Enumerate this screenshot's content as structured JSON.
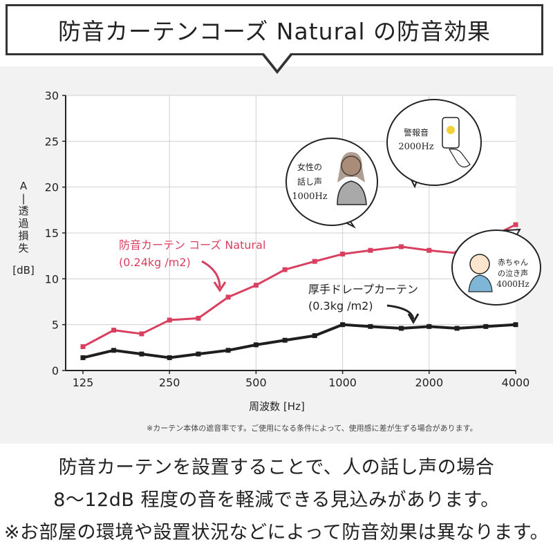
{
  "title": "防音カーテンコーズ Natural の防音効果",
  "chart_data": {
    "type": "line",
    "xlabel": "周波数 [Hz]",
    "ylabel": [
      "A",
      "|",
      "透",
      "過",
      "損",
      "失",
      "[dB]"
    ],
    "x_ticks": [
      "125",
      "250",
      "500",
      "1000",
      "2000",
      "4000"
    ],
    "x_tick_values": [
      125,
      250,
      500,
      1000,
      2000,
      4000
    ],
    "xscale": "log",
    "ylim": [
      0,
      30
    ],
    "y_ticks": [
      0,
      5,
      10,
      15,
      20,
      25,
      30
    ],
    "grid": true,
    "x": [
      125,
      160,
      200,
      250,
      315,
      400,
      500,
      630,
      800,
      1000,
      1250,
      1600,
      2000,
      2500,
      3150,
      4000
    ],
    "series": [
      {
        "name": "防音カーテン コーズ Natural",
        "sublabel": "(0.24kg /m2)",
        "color": "#d94060",
        "values": [
          2.6,
          4.4,
          4.0,
          5.5,
          5.7,
          8.0,
          9.3,
          11.0,
          11.9,
          12.7,
          13.1,
          13.5,
          13.1,
          12.8,
          14.3,
          15.9
        ]
      },
      {
        "name": "厚手ドレープカーテン",
        "sublabel": "(0.3kg /m2)",
        "color": "#1e1e1e",
        "values": [
          1.4,
          2.2,
          1.8,
          1.4,
          1.8,
          2.2,
          2.8,
          3.3,
          3.8,
          5.0,
          4.8,
          4.6,
          4.8,
          4.6,
          4.8,
          5.0
        ]
      }
    ],
    "annotations": [
      {
        "name": "female-voice",
        "lines": [
          "女性の",
          "話し声",
          "1000Hz"
        ]
      },
      {
        "name": "alarm",
        "lines": [
          "警報音",
          "2000Hz"
        ]
      },
      {
        "name": "baby",
        "lines": [
          "赤ちゃん",
          "の泣き声",
          "4000Hz"
        ]
      }
    ]
  },
  "footnote": "※カーテン本体の遮音率です。ご使用になる条件によって、使用感に差が生ずる場合があります。",
  "bottom": {
    "line1": "防音カーテンを設置することで、人の話し声の場合",
    "line2": "8〜12dB 程度の音を軽減できる見込みがあります。",
    "line3": "※お部屋の環境や設置状況などによって防音効果は異なります。"
  }
}
